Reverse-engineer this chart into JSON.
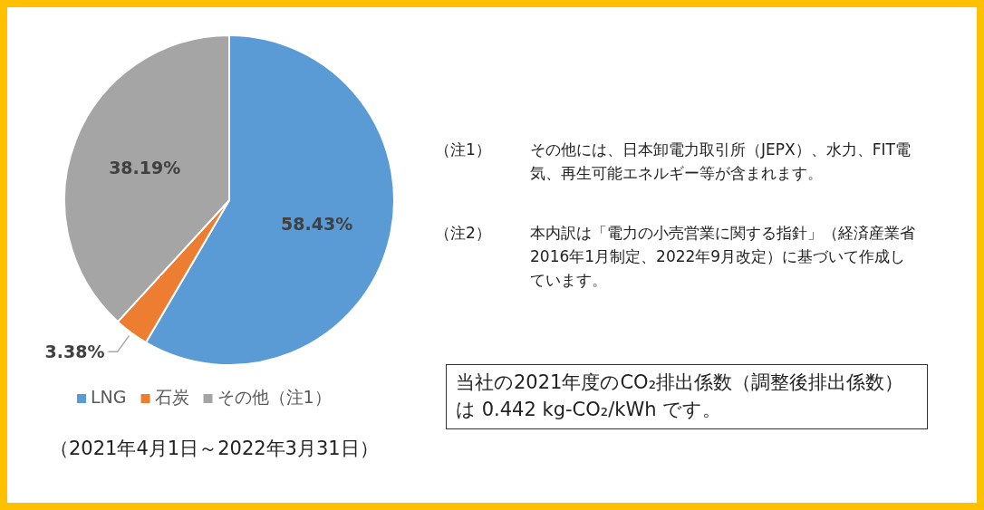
{
  "chart_data": {
    "type": "pie",
    "categories": [
      "LNG",
      "石炭",
      "その他（注1）"
    ],
    "values": [
      58.43,
      3.38,
      38.19
    ],
    "colors": [
      "#5b9bd5",
      "#ed7d31",
      "#a5a5a5"
    ],
    "value_labels": [
      "58.43%",
      "3.38%",
      "38.19%"
    ],
    "legend": "bottom",
    "annotations": [
      "（2021年4月1日～2022年3月31日）",
      "（注1）",
      "その他には、日本卸電力取引所（JEPX）、水力、FIT電気、再生可能エネルギー等が含まれます。",
      "（注2）",
      "本内訳は「電力の小売営業に関する指針」（経済産業省 2016年1月制定、2022年9月改定）に基づいて作成しています。",
      "当社の2021年度のCO₂排出係数（調整後排出係数）は 0.442 kg-CO₂/kWh です。"
    ]
  }
}
